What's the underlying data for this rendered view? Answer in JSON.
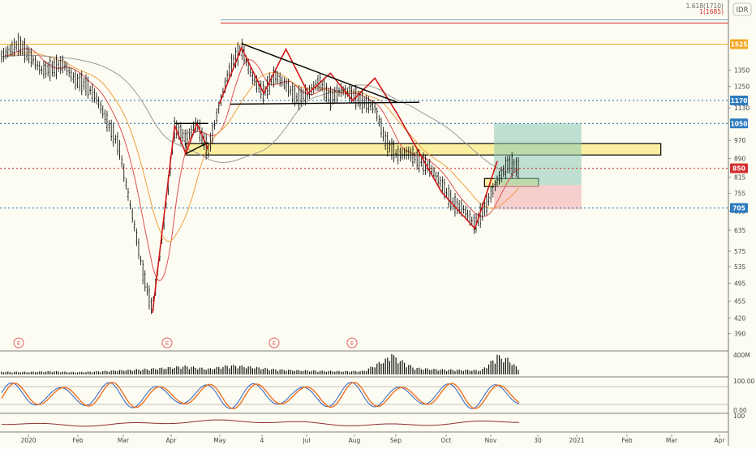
{
  "currency": "IDR",
  "colors": {
    "background": "#fdfcf2",
    "candle": "#000000",
    "trend_red": "#d01818",
    "trend_black": "#000000",
    "hline_blue": "#2e7bbf",
    "hline_orange": "#f5a623",
    "zone_yellow": "#faf0a0",
    "target_green": "#8cc8b4",
    "stop_red": "#f2bcbc",
    "ma_red": "#e05050",
    "ma_orange": "#f0a040",
    "ma_gray": "#9a9a9a",
    "stoch_blue": "#3060c0",
    "stoch_orange": "#f07020",
    "rsi_line": "#8b2e2e"
  },
  "fib_labels": {
    "l1618": "1.618(1710)",
    "l1": "1(1685)"
  },
  "events": [
    "E",
    "E",
    "E",
    "E"
  ],
  "chart_data": {
    "type": "candlestick",
    "title": "",
    "xlabel": "",
    "ylabel": "",
    "scale": "log",
    "ylim": [
      375,
      1760
    ],
    "x_ticks": [
      "2020",
      "Feb",
      "Mar",
      "Apr",
      "May",
      "4",
      "Jul",
      "Aug",
      "Sep",
      "Oct",
      "Nov",
      "30",
      "2021",
      "Feb",
      "Mar",
      "Apr"
    ],
    "y_ticks": [
      390,
      420,
      455,
      495,
      535,
      575,
      635,
      695,
      755,
      815,
      890,
      970,
      1130,
      1250,
      1350
    ],
    "price_tags": [
      {
        "label": "1525",
        "value": 1525,
        "color": "#f5a623"
      },
      {
        "label": "1170",
        "value": 1170,
        "color": "#2e7bbf"
      },
      {
        "label": "1050",
        "value": 1050,
        "color": "#2e7bbf"
      },
      {
        "label": "850",
        "value": 850,
        "color": "#d32f2f"
      },
      {
        "label": "705",
        "value": 705,
        "color": "#2e7bbf"
      }
    ],
    "horizontal_levels": [
      {
        "value": 1525,
        "style": "solid",
        "color": "#f5a623"
      },
      {
        "value": 1710,
        "style": "solid",
        "color": "#7a9cc8"
      },
      {
        "value": 1685,
        "style": "solid",
        "color": "#d32f2f"
      },
      {
        "value": 1170,
        "style": "dotted",
        "color": "#2e7bbf"
      },
      {
        "value": 1050,
        "style": "dotted",
        "color": "#2e7bbf"
      },
      {
        "value": 705,
        "style": "dotted",
        "color": "#2e7bbf"
      },
      {
        "value": 850,
        "style": "dotted",
        "color": "#d32f2f"
      }
    ],
    "price_path": [
      [
        "2020-01-02",
        1440
      ],
      [
        "2020-01-08",
        1490
      ],
      [
        "2020-01-13",
        1525
      ],
      [
        "2020-01-20",
        1440
      ],
      [
        "2020-01-27",
        1350
      ],
      [
        "2020-02-03",
        1360
      ],
      [
        "2020-02-10",
        1390
      ],
      [
        "2020-02-17",
        1290
      ],
      [
        "2020-02-24",
        1260
      ],
      [
        "2020-03-02",
        1180
      ],
      [
        "2020-03-09",
        1050
      ],
      [
        "2020-03-16",
        940
      ],
      [
        "2020-03-20",
        800
      ],
      [
        "2020-03-26",
        640
      ],
      [
        "2020-03-31",
        520
      ],
      [
        "2020-04-06",
        435
      ],
      [
        "2020-04-13",
        650
      ],
      [
        "2020-04-20",
        1030
      ],
      [
        "2020-04-27",
        980
      ],
      [
        "2020-05-04",
        1050
      ],
      [
        "2020-05-11",
        920
      ],
      [
        "2020-05-18",
        1140
      ],
      [
        "2020-05-25",
        1370
      ],
      [
        "2020-06-01",
        1500
      ],
      [
        "2020-06-08",
        1300
      ],
      [
        "2020-06-15",
        1210
      ],
      [
        "2020-06-22",
        1320
      ],
      [
        "2020-06-29",
        1260
      ],
      [
        "2020-07-06",
        1180
      ],
      [
        "2020-07-13",
        1210
      ],
      [
        "2020-07-20",
        1280
      ],
      [
        "2020-07-27",
        1180
      ],
      [
        "2020-08-03",
        1230
      ],
      [
        "2020-08-10",
        1200
      ],
      [
        "2020-08-17",
        1160
      ],
      [
        "2020-08-24",
        1130
      ],
      [
        "2020-08-31",
        960
      ],
      [
        "2020-09-07",
        905
      ],
      [
        "2020-09-14",
        915
      ],
      [
        "2020-09-21",
        880
      ],
      [
        "2020-09-28",
        850
      ],
      [
        "2020-10-05",
        790
      ],
      [
        "2020-10-12",
        720
      ],
      [
        "2020-10-19",
        700
      ],
      [
        "2020-10-26",
        650
      ],
      [
        "2020-11-02",
        715
      ],
      [
        "2020-11-09",
        800
      ],
      [
        "2020-11-16",
        870
      ],
      [
        "2020-11-23",
        850
      ]
    ],
    "trendlines": [
      {
        "color": "#d01818",
        "points": [
          [
            "2020-04-06",
            430
          ],
          [
            "2020-04-20",
            1040
          ],
          [
            "2020-04-27",
            910
          ],
          [
            "2020-05-04",
            1050
          ],
          [
            "2020-05-11",
            930
          ]
        ]
      },
      {
        "color": "#d01818",
        "points": [
          [
            "2020-05-18",
            1150
          ],
          [
            "2020-06-01",
            1500
          ],
          [
            "2020-06-15",
            1210
          ],
          [
            "2020-06-29",
            1490
          ],
          [
            "2020-07-13",
            1210
          ],
          [
            "2020-07-27",
            1330
          ],
          [
            "2020-08-10",
            1170
          ],
          [
            "2020-08-24",
            1300
          ],
          [
            "2020-09-07",
            1100
          ]
        ]
      },
      {
        "color": "#d01818",
        "points": [
          [
            "2020-09-07",
            1100
          ],
          [
            "2020-10-05",
            760
          ],
          [
            "2020-10-26",
            640
          ],
          [
            "2020-11-09",
            880
          ]
        ]
      },
      {
        "color": "#000000",
        "points": [
          [
            "2020-06-01",
            1530
          ],
          [
            "2020-09-07",
            1160
          ]
        ]
      },
      {
        "color": "#000000",
        "points": [
          [
            "2020-05-25",
            1150
          ],
          [
            "2020-09-21",
            1160
          ]
        ]
      },
      {
        "color": "#000000",
        "points": [
          [
            "2020-04-20",
            1050
          ],
          [
            "2020-05-11",
            1050
          ]
        ]
      },
      {
        "color": "#000000",
        "points": [
          [
            "2020-04-27",
            910
          ],
          [
            "2020-05-11",
            960
          ]
        ]
      }
    ],
    "zones": [
      {
        "kind": "support",
        "from": "2020-04-27",
        "to": "2021-02-20",
        "low": 905,
        "high": 955
      },
      {
        "kind": "entry",
        "from": "2020-11-01",
        "to": "2020-12-05",
        "low": 780,
        "high": 810
      },
      {
        "kind": "target",
        "from": "2020-11-07",
        "to": "2021-01-01",
        "low": 785,
        "high": 1050
      },
      {
        "kind": "stop",
        "from": "2020-11-07",
        "to": "2021-01-01",
        "low": 700,
        "high": 785
      }
    ],
    "volume_label": "400M",
    "volume": [
      [
        "2020-01-02",
        60
      ],
      [
        "2020-01-20",
        55
      ],
      [
        "2020-02-03",
        70
      ],
      [
        "2020-02-17",
        50
      ],
      [
        "2020-03-02",
        65
      ],
      [
        "2020-03-16",
        90
      ],
      [
        "2020-03-30",
        110
      ],
      [
        "2020-04-13",
        140
      ],
      [
        "2020-04-27",
        180
      ],
      [
        "2020-05-11",
        120
      ],
      [
        "2020-05-25",
        200
      ],
      [
        "2020-06-08",
        160
      ],
      [
        "2020-06-22",
        110
      ],
      [
        "2020-07-06",
        90
      ],
      [
        "2020-07-20",
        80
      ],
      [
        "2020-08-03",
        70
      ],
      [
        "2020-08-17",
        75
      ],
      [
        "2020-09-04",
        400
      ],
      [
        "2020-09-18",
        140
      ],
      [
        "2020-10-02",
        110
      ],
      [
        "2020-10-16",
        100
      ],
      [
        "2020-10-30",
        90
      ],
      [
        "2020-11-09",
        390
      ],
      [
        "2020-11-16",
        330
      ],
      [
        "2020-11-23",
        100
      ]
    ],
    "stoch_labels": [
      "100.00",
      "0.00"
    ],
    "rsi_label": "100"
  }
}
